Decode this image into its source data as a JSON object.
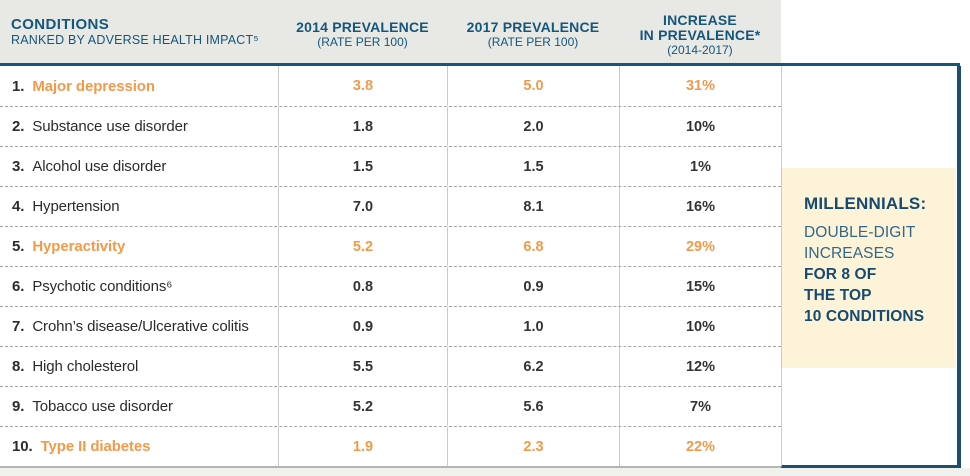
{
  "table": {
    "header": {
      "col1_line1": "CONDITIONS",
      "col1_line2": "RANKED BY ADVERSE HEALTH IMPACT⁵",
      "col2_line1": "2014 PREVALENCE",
      "col2_line2": "(RATE PER 100)",
      "col3_line1": "2017 PREVALENCE",
      "col3_line2": "(RATE PER 100)",
      "col4_line1": "INCREASE",
      "col4_line2": "IN PREVALENCE*",
      "col4_line3": "(2014-2017)"
    },
    "rows": [
      {
        "rank": "1.",
        "condition": "Major depression",
        "p2014": "3.8",
        "p2017": "5.0",
        "increase": "31%"
      },
      {
        "rank": "2.",
        "condition": "Substance use disorder",
        "p2014": "1.8",
        "p2017": "2.0",
        "increase": "10%"
      },
      {
        "rank": "3.",
        "condition": "Alcohol use disorder",
        "p2014": "1.5",
        "p2017": "1.5",
        "increase": "1%"
      },
      {
        "rank": "4.",
        "condition": "Hypertension",
        "p2014": "7.0",
        "p2017": "8.1",
        "increase": "16%"
      },
      {
        "rank": "5.",
        "condition": "Hyperactivity",
        "p2014": "5.2",
        "p2017": "6.8",
        "increase": "29%"
      },
      {
        "rank": "6.",
        "condition": "Psychotic conditions⁶",
        "p2014": "0.8",
        "p2017": "0.9",
        "increase": "15%"
      },
      {
        "rank": "7.",
        "condition": "Crohn’s disease/Ulcerative colitis",
        "p2014": "0.9",
        "p2017": "1.0",
        "increase": "10%"
      },
      {
        "rank": "8.",
        "condition": "High cholesterol",
        "p2014": "5.5",
        "p2017": "6.2",
        "increase": "12%"
      },
      {
        "rank": "9.",
        "condition": "Tobacco use disorder",
        "p2014": "5.2",
        "p2017": "5.6",
        "increase": "7%"
      },
      {
        "rank": "10.",
        "condition": "Type II diabetes",
        "p2014": "1.9",
        "p2017": "2.3",
        "increase": "22%"
      }
    ]
  },
  "callout": {
    "title": "MILLENNIALS:",
    "line1": "DOUBLE-DIGIT",
    "line2": "INCREASES",
    "line3": "FOR 8 OF",
    "line4": "THE TOP",
    "line5": "10 CONDITIONS"
  },
  "colors": {
    "header_blue": "#15567b",
    "navy_border": "#1d4e6b",
    "accent_orange": "#f29a4a",
    "cream": "#fdf3d8",
    "header_bg": "#e8e8e5",
    "body_text": "#2b2b2b"
  },
  "chart_data": {
    "type": "table",
    "title": "Conditions ranked by adverse health impact, millennials",
    "columns": [
      "Conditions ranked by adverse health impact",
      "2014 Prevalence (rate per 100)",
      "2017 Prevalence (rate per 100)",
      "Increase in prevalence (2014-2017)"
    ],
    "rows": [
      [
        "Major depression",
        3.8,
        5.0,
        "31%"
      ],
      [
        "Substance use disorder",
        1.8,
        2.0,
        "10%"
      ],
      [
        "Alcohol use disorder",
        1.5,
        1.5,
        "1%"
      ],
      [
        "Hypertension",
        7.0,
        8.1,
        "16%"
      ],
      [
        "Hyperactivity",
        5.2,
        6.8,
        "29%"
      ],
      [
        "Psychotic conditions",
        0.8,
        0.9,
        "15%"
      ],
      [
        "Crohn's disease/Ulcerative colitis",
        0.9,
        1.0,
        "10%"
      ],
      [
        "High cholesterol",
        5.5,
        6.2,
        "12%"
      ],
      [
        "Tobacco use disorder",
        5.2,
        5.6,
        "7%"
      ],
      [
        "Type II diabetes",
        1.9,
        2.3,
        "22%"
      ]
    ],
    "highlighted_rows": [
      1,
      5,
      10
    ],
    "annotation": "MILLENNIALS: DOUBLE-DIGIT INCREASES FOR 8 OF THE TOP 10 CONDITIONS"
  }
}
